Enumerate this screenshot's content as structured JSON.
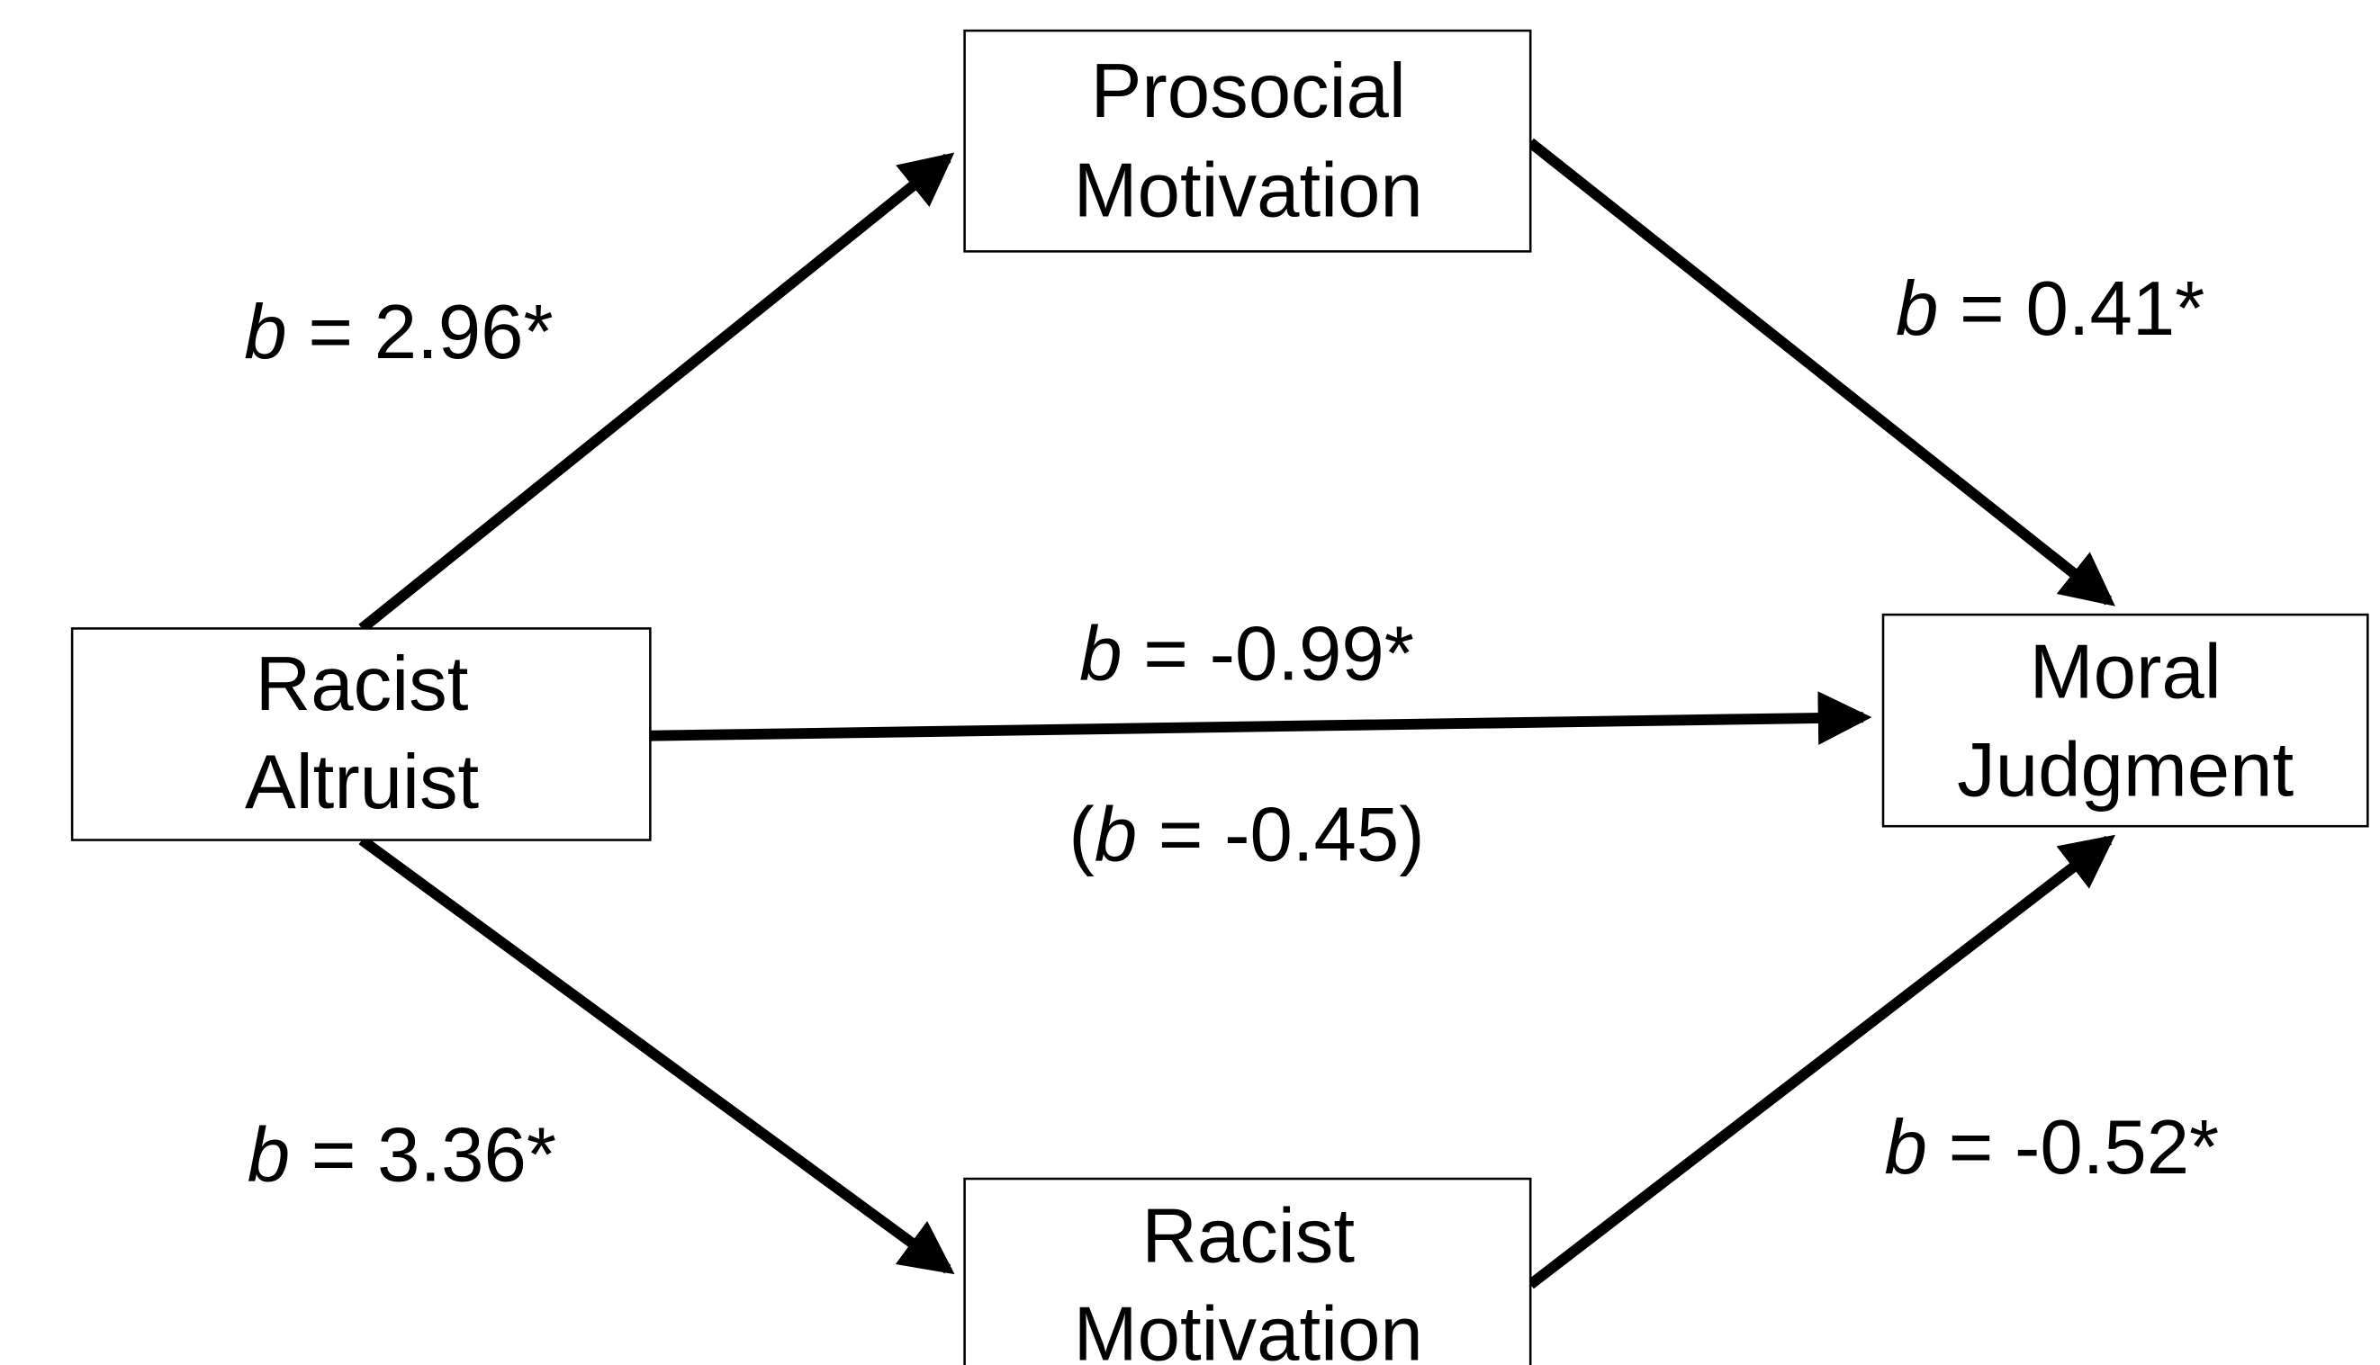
{
  "nodes": [
    {
      "label": [
        "Prosocial",
        "Motivation"
      ]
    },
    {
      "label": [
        "Racist",
        "Altruist"
      ]
    },
    {
      "label": [
        "Moral",
        "Judgment"
      ]
    },
    {
      "label": [
        "Racist",
        "Motivation"
      ]
    }
  ],
  "edges": [
    {
      "label": [
        "b",
        " = 2.96*"
      ]
    },
    {
      "label": [
        "b",
        " = 0.41*"
      ]
    },
    {
      "label": [
        "b",
        " = -0.99*"
      ],
      "sublabel": [
        "(",
        "b",
        " = -0.45)"
      ]
    },
    {
      "label": [
        "b",
        " = 3.36*"
      ]
    },
    {
      "label": [
        "b",
        " = -0.52*"
      ]
    }
  ]
}
